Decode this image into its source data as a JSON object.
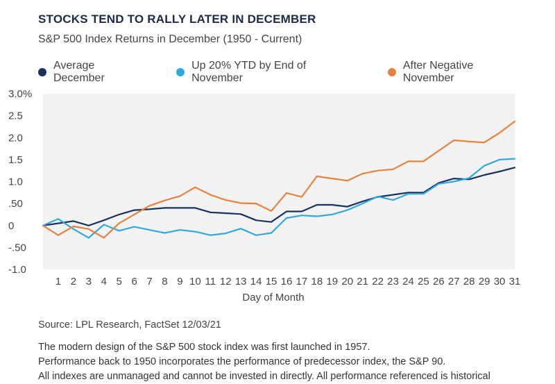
{
  "title": "STOCKS TEND TO RALLY LATER IN DECEMBER",
  "subtitle": "S&P 500 Index Returns in December (1950 - Current)",
  "source": "Source: LPL Research, FactSet  12/03/21",
  "footnotes": [
    "The modern design of the S&P 500 stock index was first launched in 1957.",
    "Performance back to 1950 incorporates the performance of predecessor index, the S&P 90.",
    "All indexes are unmanaged and cannot be invested in directly. All performance referenced is historical"
  ],
  "chart_data": {
    "type": "line",
    "xlabel": "Day of Month",
    "ylabel": "",
    "ylim": [
      -1.0,
      3.0
    ],
    "y_ticks": [
      {
        "value": 3.0,
        "label": "3.0%"
      },
      {
        "value": 2.5,
        "label": "2.5"
      },
      {
        "value": 2.0,
        "label": "2.0"
      },
      {
        "value": 1.5,
        "label": "1.5"
      },
      {
        "value": 1.0,
        "label": "1.0"
      },
      {
        "value": 0.5,
        "label": ".50"
      },
      {
        "value": 0.0,
        "label": "0"
      },
      {
        "value": -0.5,
        "label": "-.50"
      },
      {
        "value": -1.0,
        "label": "-1.0"
      }
    ],
    "grid": false,
    "legend_position": "top",
    "x": [
      0,
      1,
      2,
      3,
      4,
      5,
      6,
      7,
      8,
      9,
      10,
      11,
      12,
      13,
      14,
      15,
      16,
      17,
      18,
      19,
      20,
      21,
      22,
      23,
      24,
      25,
      26,
      27,
      28,
      29,
      30,
      31
    ],
    "x_tick_labels": [
      "1",
      "2",
      "3",
      "4",
      "5",
      "6",
      "7",
      "8",
      "9",
      "10",
      "11",
      "12",
      "13",
      "14",
      "15",
      "16",
      "17",
      "18",
      "19",
      "20",
      "21",
      "22",
      "23",
      "24",
      "25",
      "26",
      "27",
      "28",
      "29",
      "30",
      "31"
    ],
    "series": [
      {
        "name": "Average December",
        "color": "#17325e",
        "values": [
          0,
          0.05,
          0.1,
          0.0,
          0.12,
          0.25,
          0.35,
          0.37,
          0.4,
          0.4,
          0.4,
          0.3,
          0.28,
          0.26,
          0.12,
          0.08,
          0.32,
          0.32,
          0.47,
          0.47,
          0.43,
          0.55,
          0.65,
          0.7,
          0.75,
          0.75,
          0.97,
          1.07,
          1.05,
          1.15,
          1.23,
          1.32
        ]
      },
      {
        "name": "Up 20% YTD by End of November",
        "color": "#31a9db",
        "values": [
          0,
          0.15,
          -0.08,
          -0.28,
          0.02,
          -0.12,
          -0.03,
          -0.1,
          -0.17,
          -0.1,
          -0.14,
          -0.22,
          -0.18,
          -0.07,
          -0.22,
          -0.17,
          0.17,
          0.23,
          0.21,
          0.25,
          0.35,
          0.5,
          0.66,
          0.58,
          0.72,
          0.72,
          0.95,
          1.0,
          1.08,
          1.36,
          1.5,
          1.52
        ]
      },
      {
        "name": "After Negative November",
        "color": "#e8813b",
        "values": [
          0,
          -0.22,
          -0.02,
          -0.08,
          -0.28,
          0.05,
          0.25,
          0.45,
          0.57,
          0.67,
          0.87,
          0.7,
          0.58,
          0.51,
          0.5,
          0.33,
          0.74,
          0.65,
          1.12,
          1.07,
          1.02,
          1.18,
          1.25,
          1.28,
          1.46,
          1.46,
          1.7,
          1.94,
          1.91,
          1.89,
          2.11,
          2.37
        ]
      }
    ]
  }
}
